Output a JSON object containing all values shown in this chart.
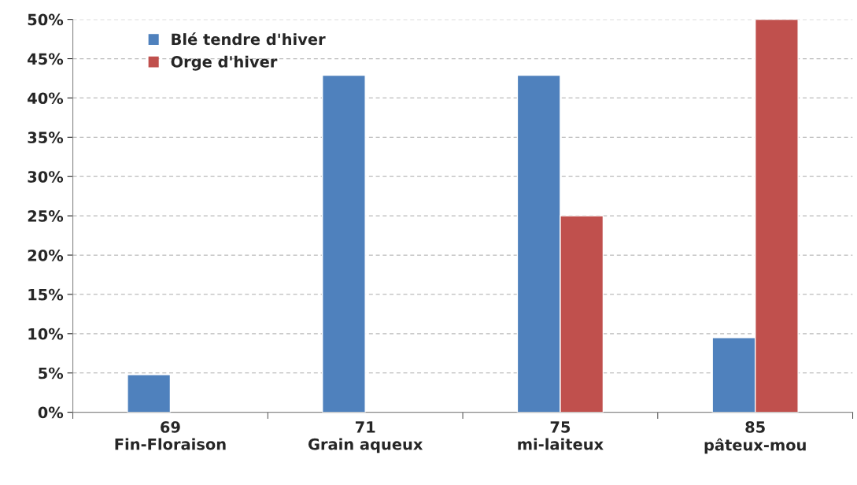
{
  "chart_data": {
    "type": "bar",
    "categories": [
      "69\nFin-Floraison",
      "71\nGrain aqueux",
      "75\nmi-laiteux",
      "85\npâteux-mou"
    ],
    "series": [
      {
        "name": "Blé tendre d'hiver",
        "color": "#4f81bd",
        "values": [
          4.8,
          42.9,
          42.9,
          9.5
        ]
      },
      {
        "name": "Orge d'hiver",
        "color": "#c0504d",
        "values": [
          null,
          null,
          25,
          50
        ]
      }
    ],
    "ylim": [
      0,
      50
    ],
    "yticks": [
      {
        "value": 0,
        "label": "0%"
      },
      {
        "value": 5,
        "label": "5%"
      },
      {
        "value": 10,
        "label": "10%"
      },
      {
        "value": 15,
        "label": "15%"
      },
      {
        "value": 20,
        "label": "20%"
      },
      {
        "value": 25,
        "label": "25%"
      },
      {
        "value": 30,
        "label": "30%"
      },
      {
        "value": 35,
        "label": "35%"
      },
      {
        "value": 40,
        "label": "40%"
      },
      {
        "value": 45,
        "label": "45%"
      },
      {
        "value": 50,
        "label": "50%"
      }
    ],
    "grid": "y",
    "legend": "top left"
  }
}
